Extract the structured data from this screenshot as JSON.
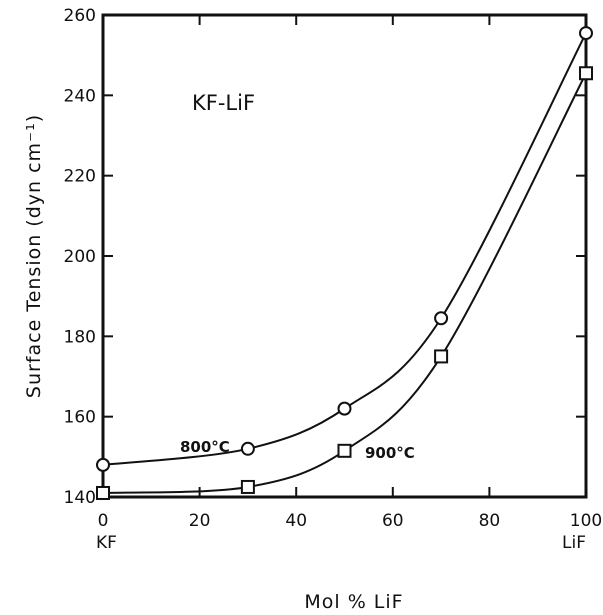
{
  "chart_data": {
    "type": "line",
    "xlabel": "Mol % LiF",
    "ylabel": "Surface Tension (dyn cm⁻¹)",
    "xlim": [
      0,
      100
    ],
    "ylim": [
      140,
      260
    ],
    "x_ticks": [
      0,
      20,
      40,
      60,
      80,
      100
    ],
    "y_ticks": [
      140,
      160,
      180,
      200,
      220,
      240,
      260
    ],
    "x_end_labels": {
      "left": "KF",
      "right": "LiF"
    },
    "annotation": "KF-LiF",
    "grid": false,
    "series": [
      {
        "name": "800°C",
        "marker": "circle",
        "x": [
          0,
          30,
          50,
          70,
          100
        ],
        "y": [
          148,
          152,
          162,
          184.5,
          255.5
        ]
      },
      {
        "name": "900°C",
        "marker": "square",
        "x": [
          0,
          30,
          50,
          70,
          100
        ],
        "y": [
          141,
          142.5,
          151.5,
          175,
          245.5
        ]
      }
    ]
  }
}
